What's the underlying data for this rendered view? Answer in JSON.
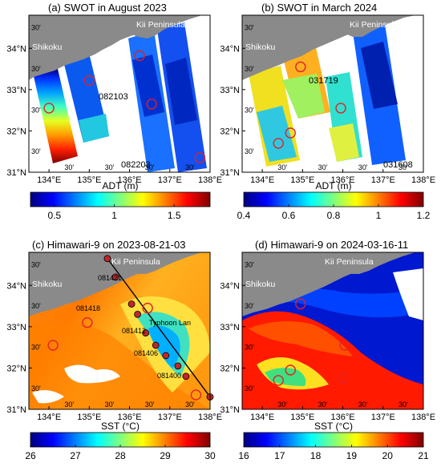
{
  "colors": {
    "land": "#8a8a8a",
    "marker": "#e0202a",
    "glider_track": "#000000",
    "glider_point": "#c0262a",
    "jet": [
      "#00007f",
      "#0000ff",
      "#007fff",
      "#00ffff",
      "#7fff7f",
      "#ffff00",
      "#ff7f00",
      "#ff0000",
      "#7f0000"
    ]
  },
  "chart_data": [
    {
      "type": "heatmap",
      "title": "(a) SWOT in August 2023",
      "land_labels": [
        "Shikoku",
        "Kii Peninsula"
      ],
      "pass_labels": [
        "082103",
        "082203"
      ],
      "x_ticks": [
        "134°E",
        "135°E",
        "136°E",
        "137°E",
        "138°E"
      ],
      "x_minor_tick_label": "30'",
      "y_ticks": [
        "34°N",
        "33°N",
        "32°N",
        "31°N"
      ],
      "y_minor_tick_label": "30'",
      "xlim": [
        133.5,
        138
      ],
      "ylim": [
        31,
        34.8
      ],
      "colorbar": {
        "label": "ADT (m)",
        "ticks": [
          "0.5",
          "1",
          "1.5"
        ],
        "min": 0.3,
        "max": 1.8
      },
      "markers": [
        [
          134.0,
          32.55
        ],
        [
          135.0,
          33.22
        ],
        [
          136.25,
          33.82
        ],
        [
          136.55,
          32.65
        ],
        [
          137.75,
          31.35
        ]
      ]
    },
    {
      "type": "heatmap",
      "title": "(b) SWOT in March 2024",
      "land_labels": [
        "Shikoku",
        "Kii Peninsula"
      ],
      "pass_labels": [
        "031719",
        "031608"
      ],
      "x_ticks": [
        "134°E",
        "135°E",
        "136°E",
        "137°E",
        "138°E"
      ],
      "x_minor_tick_label": "30'",
      "y_ticks": [
        "34°N",
        "33°N",
        "32°N",
        "31°N"
      ],
      "y_minor_tick_label": "30'",
      "xlim": [
        133.5,
        138
      ],
      "ylim": [
        31,
        34.8
      ],
      "colorbar": {
        "label": "ADT (m)",
        "ticks": [
          "0.4",
          "0.6",
          "0.8",
          "1",
          "1.2"
        ],
        "min": 0.4,
        "max": 1.2
      },
      "markers": [
        [
          134.95,
          33.55
        ],
        [
          135.95,
          32.55
        ],
        [
          134.7,
          31.95
        ],
        [
          134.4,
          31.7
        ]
      ]
    },
    {
      "type": "heatmap",
      "title": "(c) Himawari-9  on 2023-08-21-03",
      "land_labels": [
        "Shikoku",
        "Kii Peninsula"
      ],
      "annotation": "Typhoon Lan",
      "x_ticks": [
        "134°E",
        "135°E",
        "136°E",
        "137°E",
        "138°E"
      ],
      "x_minor_tick_label": "30'",
      "y_ticks": [
        "34°N",
        "33°N",
        "32°N",
        "31°N"
      ],
      "y_minor_tick_label": "30'",
      "xlim": [
        133.5,
        138
      ],
      "ylim": [
        31,
        34.8
      ],
      "colorbar": {
        "label": "SST (°C)",
        "ticks": [
          "26",
          "27",
          "28",
          "29",
          "30"
        ],
        "min": 26,
        "max": 30
      },
      "glider_track": {
        "start": [
          135.45,
          34.65
        ],
        "end": [
          138.0,
          31.3
        ],
        "points": [
          [
            135.45,
            34.65
          ],
          [
            135.65,
            34.2
          ],
          [
            136.05,
            33.55
          ],
          [
            136.2,
            33.3
          ],
          [
            136.4,
            32.85
          ],
          [
            136.65,
            32.55
          ],
          [
            136.9,
            32.3
          ],
          [
            137.2,
            32.05
          ],
          [
            137.4,
            31.8
          ]
        ],
        "labels": [
          "081421",
          "081418",
          "081412",
          "081406",
          "081400"
        ]
      },
      "markers": [
        [
          134.95,
          33.1
        ],
        [
          134.1,
          32.55
        ],
        [
          136.45,
          33.45
        ],
        [
          137.65,
          31.35
        ]
      ]
    },
    {
      "type": "heatmap",
      "title": "(d) Himawari-9 on 2024-03-16-11",
      "land_labels": [
        "Shikoku",
        "Kii Peninsula"
      ],
      "x_ticks": [
        "134°E",
        "135°E",
        "136°E",
        "137°E",
        "138°E"
      ],
      "x_minor_tick_label": "30'",
      "y_ticks": [
        "34°N",
        "33°N",
        "32°N",
        "31°N"
      ],
      "y_minor_tick_label": "30'",
      "xlim": [
        133.5,
        138
      ],
      "ylim": [
        31,
        34.8
      ],
      "colorbar": {
        "label": "SST (°C)",
        "ticks": [
          "16",
          "17",
          "18",
          "19",
          "20",
          "21"
        ],
        "min": 16,
        "max": 21
      },
      "markers": [
        [
          134.95,
          33.55
        ],
        [
          136.05,
          32.55
        ],
        [
          134.7,
          31.95
        ],
        [
          134.4,
          31.7
        ],
        [
          136.0,
          31.75
        ]
      ]
    }
  ]
}
